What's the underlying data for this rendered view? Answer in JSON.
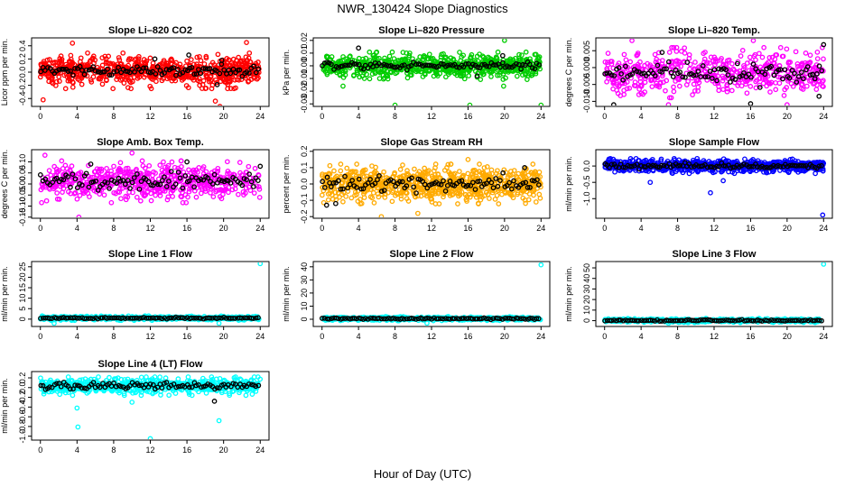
{
  "figure": {
    "title": "NWR_130424  Slope Diagnostics",
    "xlabel": "Hour of Day (UTC)"
  },
  "colors": {
    "black_series": "#000000",
    "axis": "#000000"
  },
  "chart_data": [
    {
      "type": "scatter",
      "title": "Slope Li–820 CO2",
      "ylabel": "Licor ppm per min.",
      "xlim": [
        -0.96,
        24.96
      ],
      "ylim": [
        -0.52,
        0.52
      ],
      "x_ticks": [
        "0",
        "4",
        "8",
        "12",
        "16",
        "20",
        "24"
      ],
      "y_ticks": [
        "-0.4",
        "-0.2",
        "0.0",
        "0.2",
        "0.4"
      ],
      "y_tick_values": [
        -0.4,
        -0.2,
        0.0,
        0.2,
        0.4
      ],
      "color": "#ff0000",
      "noise": {
        "n": 700,
        "center": 0.02,
        "spread": 0.2,
        "black_spread": 0.08
      },
      "outliers": [
        [
          19.1,
          -0.44
        ],
        [
          3.5,
          0.44
        ],
        [
          22.5,
          0.45
        ],
        [
          0.3,
          -0.42
        ],
        [
          19.6,
          -0.52
        ]
      ],
      "black_outliers": [
        [
          19.3,
          -0.19
        ],
        [
          16.2,
          0.26
        ],
        [
          19.8,
          0.18
        ],
        [
          12.5,
          0.2
        ]
      ]
    },
    {
      "type": "scatter",
      "title": "Slope Li–820 Pressure",
      "ylabel": "kPa per min.",
      "xlim": [
        -0.96,
        24.96
      ],
      "ylim": [
        -0.032,
        0.022
      ],
      "x_ticks": [
        "0",
        "4",
        "8",
        "12",
        "16",
        "20",
        "24"
      ],
      "y_ticks": [
        "-0.03",
        "-0.02",
        "-0.01",
        "0.00",
        "0.01",
        "0.02"
      ],
      "y_tick_values": [
        -0.03,
        -0.02,
        -0.01,
        0.0,
        0.01,
        0.02
      ],
      "color": "#00cc00",
      "noise": {
        "n": 700,
        "center": 0.0,
        "spread": 0.008,
        "black_spread": 0.003
      },
      "outliers": [
        [
          8.0,
          -0.031
        ],
        [
          16.2,
          -0.031
        ],
        [
          24.0,
          -0.031
        ],
        [
          20.0,
          0.02
        ],
        [
          2.3,
          -0.016
        ],
        [
          19.9,
          -0.016
        ]
      ],
      "black_outliers": [
        [
          4.0,
          0.014
        ],
        [
          19.8,
          0.008
        ],
        [
          17.0,
          -0.008
        ]
      ]
    },
    {
      "type": "scatter",
      "title": "Slope Li–820 Temp.",
      "ylabel": "degrees C per min.",
      "xlim": [
        -0.96,
        24.96
      ],
      "ylim": [
        -0.0115,
        0.0088
      ],
      "x_ticks": [
        "0",
        "4",
        "8",
        "12",
        "16",
        "20",
        "24"
      ],
      "y_ticks": [
        "-0.010",
        "-0.005",
        "0.000",
        "0.005"
      ],
      "y_tick_values": [
        -0.01,
        -0.005,
        0.0,
        0.005
      ],
      "color": "#ff00ff",
      "noise": {
        "n": 500,
        "center": -0.0015,
        "spread": 0.0055,
        "black_spread": 0.003
      },
      "outliers": [
        [
          3.0,
          0.008
        ],
        [
          16.3,
          0.008
        ],
        [
          20.0,
          -0.011
        ],
        [
          7.0,
          -0.011
        ]
      ],
      "black_outliers": [
        [
          24.0,
          0.0068
        ],
        [
          1.0,
          -0.011
        ],
        [
          16.0,
          -0.0107
        ],
        [
          23.5,
          -0.0085
        ],
        [
          6.3,
          0.0045
        ]
      ]
    },
    {
      "type": "scatter",
      "title": "Slope Amb. Box Temp.",
      "ylabel": "degrees C per min.",
      "xlim": [
        -0.96,
        24.96
      ],
      "ylim": [
        -0.155,
        0.155
      ],
      "x_ticks": [
        "0",
        "4",
        "8",
        "12",
        "16",
        "20",
        "24"
      ],
      "y_ticks": [
        "-0.15",
        "-0.10",
        "-0.05",
        "0.00",
        "0.05",
        "0.10"
      ],
      "y_tick_values": [
        -0.15,
        -0.1,
        -0.05,
        0.0,
        0.05,
        0.1
      ],
      "color": "#ff00ff",
      "noise": {
        "n": 550,
        "center": 0.01,
        "spread": 0.07,
        "black_spread": 0.04
      },
      "outliers": [
        [
          4.2,
          -0.15
        ],
        [
          0.5,
          0.13
        ],
        [
          10.0,
          0.14
        ]
      ],
      "black_outliers": [
        [
          16.0,
          0.1
        ],
        [
          5.5,
          0.09
        ],
        [
          24.0,
          0.08
        ]
      ]
    },
    {
      "type": "scatter",
      "title": "Slope Gas Stream RH",
      "ylabel": "percent per min.",
      "xlim": [
        -0.96,
        24.96
      ],
      "ylim": [
        -0.21,
        0.21
      ],
      "x_ticks": [
        "0",
        "4",
        "8",
        "12",
        "16",
        "20",
        "24"
      ],
      "y_ticks": [
        "-0.2",
        "-0.1",
        "0.0",
        "0.1",
        "0.2"
      ],
      "y_tick_values": [
        -0.2,
        -0.1,
        0.0,
        0.1,
        0.2
      ],
      "color": "#ffaa00",
      "noise": {
        "n": 800,
        "center": 0.0,
        "spread": 0.09,
        "black_spread": 0.05
      },
      "outliers": [
        [
          6.5,
          -0.2
        ],
        [
          10.5,
          -0.18
        ],
        [
          16.0,
          0.15
        ]
      ],
      "black_outliers": [
        [
          0.5,
          -0.13
        ],
        [
          1.5,
          -0.12
        ],
        [
          22.2,
          0.1
        ]
      ]
    },
    {
      "type": "scatter",
      "title": "Slope Sample Flow",
      "ylabel": "ml/min per min.",
      "xlim": [
        -0.96,
        24.96
      ],
      "ylim": [
        -1.6,
        0.5
      ],
      "x_ticks": [
        "0",
        "4",
        "8",
        "12",
        "16",
        "20",
        "24"
      ],
      "y_ticks": [
        "-1.0",
        "-0.5",
        "0.0"
      ],
      "y_tick_values": [
        -1.0,
        -0.5,
        0.0
      ],
      "color": "#0000ff",
      "noise": {
        "n": 700,
        "center": 0.0,
        "spread": 0.17,
        "black_spread": 0.08
      },
      "outliers": [
        [
          23.9,
          -1.5
        ],
        [
          11.6,
          -0.82
        ],
        [
          13.0,
          -0.45
        ],
        [
          5.0,
          -0.5
        ]
      ],
      "black_outliers": []
    },
    {
      "type": "scatter",
      "title": "Slope Line 1 Flow",
      "ylabel": "ml/min per min.",
      "xlim": [
        -0.96,
        24.96
      ],
      "ylim": [
        -3.5,
        27.5
      ],
      "x_ticks": [
        "0",
        "4",
        "8",
        "12",
        "16",
        "20",
        "24"
      ],
      "y_ticks": [
        "0",
        "5",
        "10",
        "15",
        "20",
        "25"
      ],
      "y_tick_values": [
        0,
        5,
        10,
        15,
        20,
        25
      ],
      "color": "#00ffff",
      "noise": {
        "n": 500,
        "center": 0.5,
        "spread": 0.8,
        "black_spread": 0.4
      },
      "outliers": [
        [
          24.0,
          26.5
        ],
        [
          1.5,
          -2.0
        ],
        [
          19.5,
          -2.0
        ]
      ],
      "black_outliers": []
    },
    {
      "type": "scatter",
      "title": "Slope Line 2 Flow",
      "ylabel": "ml/min per min.",
      "xlim": [
        -0.96,
        24.96
      ],
      "ylim": [
        -5.5,
        44
      ],
      "x_ticks": [
        "0",
        "4",
        "8",
        "12",
        "16",
        "20",
        "24"
      ],
      "y_ticks": [
        "0",
        "10",
        "20",
        "30",
        "40"
      ],
      "y_tick_values": [
        0,
        10,
        20,
        30,
        40
      ],
      "color": "#00ffff",
      "noise": {
        "n": 500,
        "center": 0.5,
        "spread": 1.2,
        "black_spread": 0.6
      },
      "outliers": [
        [
          24.0,
          41.5
        ],
        [
          11.5,
          -3.0
        ]
      ],
      "black_outliers": []
    },
    {
      "type": "scatter",
      "title": "Slope Line 3 Flow",
      "ylabel": "ml/min per min.",
      "xlim": [
        -0.96,
        24.96
      ],
      "ylim": [
        -5.5,
        56
      ],
      "x_ticks": [
        "0",
        "4",
        "8",
        "12",
        "16",
        "20",
        "24"
      ],
      "y_ticks": [
        "0",
        "10",
        "20",
        "30",
        "40",
        "50"
      ],
      "y_tick_values": [
        0,
        10,
        20,
        30,
        40,
        50
      ],
      "color": "#00ffff",
      "noise": {
        "n": 500,
        "center": 0.2,
        "spread": 1.5,
        "black_spread": 0.7
      },
      "outliers": [
        [
          24.0,
          53.5
        ],
        [
          7.0,
          -2.5
        ]
      ],
      "black_outliers": []
    },
    {
      "type": "scatter",
      "title": "Slope Line 4 (LT) Flow",
      "ylabel": "ml/min per min.",
      "xlim": [
        -0.96,
        24.96
      ],
      "ylim": [
        -1.08,
        0.33
      ],
      "x_ticks": [
        "0",
        "4",
        "8",
        "12",
        "16",
        "20",
        "24"
      ],
      "y_ticks": [
        "-1.0",
        "-0.8",
        "-0.6",
        "-0.4",
        "-0.2",
        "0.0",
        "0.2"
      ],
      "y_tick_values": [
        -1.0,
        -0.8,
        -0.6,
        -0.4,
        -0.2,
        0.0,
        0.2
      ],
      "color": "#00ffff",
      "noise": {
        "n": 600,
        "center": 0.03,
        "spread": 0.14,
        "black_spread": 0.08
      },
      "outliers": [
        [
          4.1,
          -0.81
        ],
        [
          19.5,
          -0.68
        ],
        [
          12.0,
          -1.05
        ],
        [
          10.0,
          -0.3
        ],
        [
          4.0,
          -0.42
        ]
      ],
      "black_outliers": [
        [
          19.0,
          -0.28
        ]
      ]
    }
  ]
}
